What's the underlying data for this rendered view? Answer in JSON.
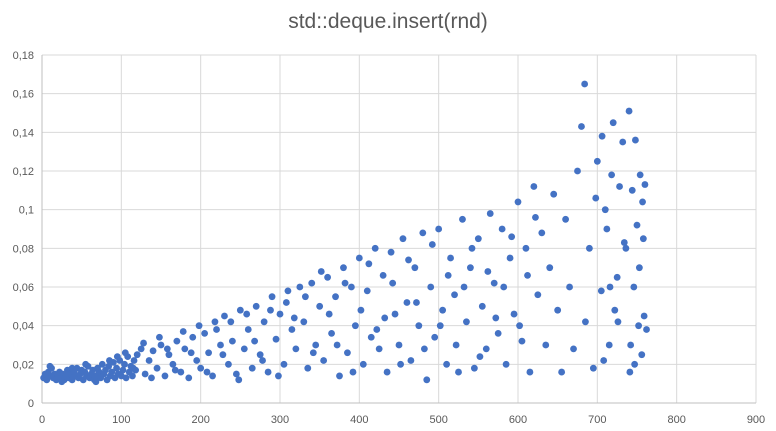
{
  "chart_data": {
    "type": "scatter",
    "title": "std::deque.insert(rnd)",
    "xlabel": "",
    "ylabel": "",
    "xlim": [
      0,
      900
    ],
    "ylim": [
      0,
      0.18
    ],
    "x_ticks": [
      0,
      100,
      200,
      300,
      400,
      500,
      600,
      700,
      800,
      900
    ],
    "y_ticks": [
      0,
      0.02,
      0.04,
      0.06,
      0.08,
      0.1,
      0.12,
      0.14,
      0.16,
      0.18
    ],
    "y_tick_labels": [
      "0",
      "0,02",
      "0,04",
      "0,06",
      "0,08",
      "0,1",
      "0,12",
      "0,14",
      "0,16",
      "0,18"
    ],
    "x_tick_labels": [
      "0",
      "100",
      "200",
      "300",
      "400",
      "500",
      "600",
      "700",
      "800",
      "900"
    ],
    "grid": true,
    "marker_color": "#4472c4",
    "series": [
      {
        "points": [
          [
            2,
            0.013
          ],
          [
            4,
            0.015
          ],
          [
            6,
            0.012
          ],
          [
            8,
            0.016
          ],
          [
            10,
            0.014
          ],
          [
            12,
            0.018
          ],
          [
            14,
            0.013
          ],
          [
            16,
            0.015
          ],
          [
            18,
            0.012
          ],
          [
            20,
            0.014
          ],
          [
            22,
            0.016
          ],
          [
            24,
            0.013
          ],
          [
            26,
            0.015
          ],
          [
            28,
            0.012
          ],
          [
            30,
            0.014
          ],
          [
            32,
            0.017
          ],
          [
            34,
            0.013
          ],
          [
            36,
            0.015
          ],
          [
            38,
            0.012
          ],
          [
            40,
            0.016
          ],
          [
            42,
            0.014
          ],
          [
            44,
            0.018
          ],
          [
            46,
            0.013
          ],
          [
            48,
            0.015
          ],
          [
            50,
            0.017
          ],
          [
            52,
            0.012
          ],
          [
            54,
            0.016
          ],
          [
            56,
            0.014
          ],
          [
            58,
            0.019
          ],
          [
            60,
            0.013
          ],
          [
            62,
            0.015
          ],
          [
            64,
            0.017
          ],
          [
            66,
            0.012
          ],
          [
            68,
            0.014
          ],
          [
            70,
            0.018
          ],
          [
            72,
            0.016
          ],
          [
            74,
            0.013
          ],
          [
            76,
            0.02
          ],
          [
            78,
            0.015
          ],
          [
            80,
            0.017
          ],
          [
            82,
            0.012
          ],
          [
            84,
            0.019
          ],
          [
            86,
            0.014
          ],
          [
            88,
            0.016
          ],
          [
            90,
            0.021
          ],
          [
            92,
            0.013
          ],
          [
            94,
            0.018
          ],
          [
            96,
            0.015
          ],
          [
            98,
            0.022
          ],
          [
            100,
            0.014
          ],
          [
            102,
            0.017
          ],
          [
            104,
            0.02
          ],
          [
            106,
            0.013
          ],
          [
            108,
            0.024
          ],
          [
            110,
            0.016
          ],
          [
            112,
            0.019
          ],
          [
            114,
            0.014
          ],
          [
            116,
            0.022
          ],
          [
            118,
            0.017
          ],
          [
            120,
            0.025
          ],
          [
            10,
            0.019
          ],
          [
            25,
            0.011
          ],
          [
            38,
            0.018
          ],
          [
            55,
            0.02
          ],
          [
            68,
            0.011
          ],
          [
            85,
            0.022
          ],
          [
            95,
            0.024
          ],
          [
            105,
            0.026
          ],
          [
            115,
            0.018
          ],
          [
            125,
            0.028
          ],
          [
            130,
            0.015
          ],
          [
            135,
            0.022
          ],
          [
            140,
            0.027
          ],
          [
            145,
            0.018
          ],
          [
            150,
            0.03
          ],
          [
            155,
            0.014
          ],
          [
            160,
            0.025
          ],
          [
            165,
            0.02
          ],
          [
            170,
            0.032
          ],
          [
            175,
            0.016
          ],
          [
            180,
            0.028
          ],
          [
            185,
            0.013
          ],
          [
            190,
            0.034
          ],
          [
            195,
            0.022
          ],
          [
            200,
            0.018
          ],
          [
            205,
            0.036
          ],
          [
            210,
            0.026
          ],
          [
            215,
            0.014
          ],
          [
            220,
            0.038
          ],
          [
            225,
            0.03
          ],
          [
            128,
            0.031
          ],
          [
            138,
            0.013
          ],
          [
            148,
            0.034
          ],
          [
            158,
            0.028
          ],
          [
            168,
            0.017
          ],
          [
            178,
            0.037
          ],
          [
            188,
            0.026
          ],
          [
            198,
            0.04
          ],
          [
            208,
            0.016
          ],
          [
            218,
            0.042
          ],
          [
            230,
            0.045
          ],
          [
            235,
            0.02
          ],
          [
            240,
            0.032
          ],
          [
            245,
            0.015
          ],
          [
            250,
            0.048
          ],
          [
            255,
            0.028
          ],
          [
            260,
            0.038
          ],
          [
            265,
            0.018
          ],
          [
            270,
            0.05
          ],
          [
            275,
            0.025
          ],
          [
            280,
            0.042
          ],
          [
            285,
            0.016
          ],
          [
            290,
            0.055
          ],
          [
            295,
            0.033
          ],
          [
            300,
            0.046
          ],
          [
            305,
            0.02
          ],
          [
            310,
            0.058
          ],
          [
            315,
            0.038
          ],
          [
            320,
            0.028
          ],
          [
            325,
            0.06
          ],
          [
            228,
            0.025
          ],
          [
            238,
            0.042
          ],
          [
            248,
            0.012
          ],
          [
            258,
            0.046
          ],
          [
            268,
            0.032
          ],
          [
            278,
            0.022
          ],
          [
            288,
            0.048
          ],
          [
            298,
            0.014
          ],
          [
            308,
            0.052
          ],
          [
            318,
            0.044
          ],
          [
            330,
            0.042
          ],
          [
            335,
            0.018
          ],
          [
            340,
            0.062
          ],
          [
            345,
            0.03
          ],
          [
            350,
            0.05
          ],
          [
            355,
            0.022
          ],
          [
            360,
            0.065
          ],
          [
            365,
            0.036
          ],
          [
            370,
            0.055
          ],
          [
            375,
            0.014
          ],
          [
            380,
            0.07
          ],
          [
            385,
            0.026
          ],
          [
            390,
            0.06
          ],
          [
            395,
            0.04
          ],
          [
            400,
            0.075
          ],
          [
            405,
            0.02
          ],
          [
            410,
            0.058
          ],
          [
            415,
            0.034
          ],
          [
            420,
            0.08
          ],
          [
            425,
            0.028
          ],
          [
            332,
            0.055
          ],
          [
            342,
            0.026
          ],
          [
            352,
            0.068
          ],
          [
            362,
            0.046
          ],
          [
            372,
            0.03
          ],
          [
            382,
            0.062
          ],
          [
            392,
            0.016
          ],
          [
            402,
            0.048
          ],
          [
            412,
            0.072
          ],
          [
            422,
            0.038
          ],
          [
            430,
            0.066
          ],
          [
            435,
            0.016
          ],
          [
            440,
            0.078
          ],
          [
            445,
            0.046
          ],
          [
            450,
            0.03
          ],
          [
            455,
            0.085
          ],
          [
            460,
            0.052
          ],
          [
            465,
            0.022
          ],
          [
            470,
            0.07
          ],
          [
            475,
            0.04
          ],
          [
            480,
            0.088
          ],
          [
            485,
            0.012
          ],
          [
            490,
            0.06
          ],
          [
            495,
            0.034
          ],
          [
            500,
            0.09
          ],
          [
            505,
            0.048
          ],
          [
            510,
            0.02
          ],
          [
            515,
            0.075
          ],
          [
            520,
            0.056
          ],
          [
            525,
            0.016
          ],
          [
            432,
            0.044
          ],
          [
            442,
            0.062
          ],
          [
            452,
            0.02
          ],
          [
            462,
            0.074
          ],
          [
            472,
            0.052
          ],
          [
            482,
            0.028
          ],
          [
            492,
            0.082
          ],
          [
            502,
            0.04
          ],
          [
            512,
            0.066
          ],
          [
            522,
            0.03
          ],
          [
            530,
            0.095
          ],
          [
            535,
            0.042
          ],
          [
            540,
            0.07
          ],
          [
            545,
            0.018
          ],
          [
            550,
            0.085
          ],
          [
            555,
            0.05
          ],
          [
            560,
            0.028
          ],
          [
            565,
            0.098
          ],
          [
            570,
            0.062
          ],
          [
            575,
            0.036
          ],
          [
            580,
            0.09
          ],
          [
            585,
            0.02
          ],
          [
            590,
            0.075
          ],
          [
            595,
            0.046
          ],
          [
            600,
            0.104
          ],
          [
            605,
            0.032
          ],
          [
            610,
            0.08
          ],
          [
            615,
            0.016
          ],
          [
            620,
            0.112
          ],
          [
            625,
            0.056
          ],
          [
            532,
            0.06
          ],
          [
            542,
            0.08
          ],
          [
            552,
            0.024
          ],
          [
            562,
            0.068
          ],
          [
            572,
            0.044
          ],
          [
            582,
            0.06
          ],
          [
            592,
            0.086
          ],
          [
            602,
            0.04
          ],
          [
            612,
            0.066
          ],
          [
            622,
            0.096
          ],
          [
            630,
            0.088
          ],
          [
            635,
            0.03
          ],
          [
            640,
            0.07
          ],
          [
            645,
            0.108
          ],
          [
            650,
            0.048
          ],
          [
            655,
            0.016
          ],
          [
            660,
            0.095
          ],
          [
            665,
            0.06
          ],
          [
            670,
            0.028
          ],
          [
            675,
            0.12
          ],
          [
            680,
            0.143
          ],
          [
            685,
            0.042
          ],
          [
            690,
            0.08
          ],
          [
            695,
            0.018
          ],
          [
            700,
            0.125
          ],
          [
            705,
            0.058
          ],
          [
            710,
            0.1
          ],
          [
            715,
            0.03
          ],
          [
            720,
            0.145
          ],
          [
            725,
            0.065
          ],
          [
            684,
            0.165
          ],
          [
            698,
            0.106
          ],
          [
            706,
            0.138
          ],
          [
            712,
            0.09
          ],
          [
            718,
            0.118
          ],
          [
            722,
            0.048
          ],
          [
            728,
            0.112
          ],
          [
            732,
            0.135
          ],
          [
            736,
            0.08
          ],
          [
            740,
            0.151
          ],
          [
            744,
            0.11
          ],
          [
            746,
            0.06
          ],
          [
            748,
            0.136
          ],
          [
            750,
            0.092
          ],
          [
            752,
            0.04
          ],
          [
            754,
            0.118
          ],
          [
            756,
            0.025
          ],
          [
            758,
            0.085
          ],
          [
            760,
            0.113
          ],
          [
            762,
            0.038
          ],
          [
            742,
            0.03
          ],
          [
            747,
            0.02
          ],
          [
            753,
            0.07
          ],
          [
            757,
            0.104
          ],
          [
            759,
            0.045
          ],
          [
            741,
            0.016
          ],
          [
            734,
            0.083
          ],
          [
            726,
            0.042
          ],
          [
            716,
            0.06
          ],
          [
            708,
            0.022
          ]
        ]
      }
    ]
  }
}
